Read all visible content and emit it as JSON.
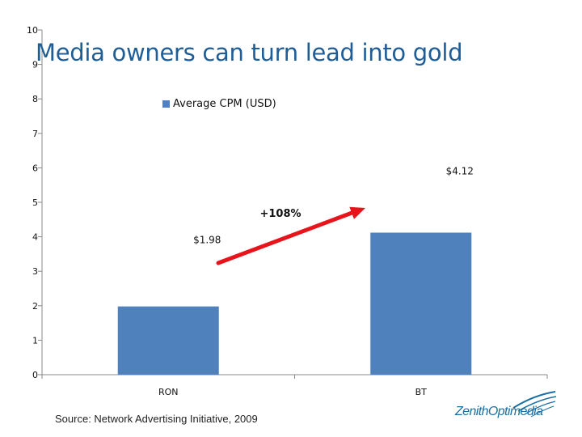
{
  "slide": {
    "title": "Media owners can turn lead into gold",
    "source": "Source: Network Advertising Initiative, 2009",
    "logo_text": "ZenithOptimedia",
    "growth_label": "+108%"
  },
  "colors": {
    "bar": "#4f81bd",
    "title": "#1f5d96",
    "arrow": "#e8141c",
    "logo": "#1a6fa3"
  },
  "chart_data": {
    "type": "bar",
    "categories": [
      "RON",
      "BT"
    ],
    "series": [
      {
        "name": "Average CPM (USD)",
        "values": [
          1.98,
          4.12
        ]
      }
    ],
    "data_labels": [
      "$1.98",
      "$4.12"
    ],
    "yticks": [
      "0",
      "1",
      "2",
      "3",
      "4",
      "5",
      "6",
      "7",
      "8",
      "9",
      "10"
    ],
    "ylim": [
      0,
      10
    ],
    "legend_position": "top-center",
    "grid": false,
    "annotation": "+108%"
  }
}
